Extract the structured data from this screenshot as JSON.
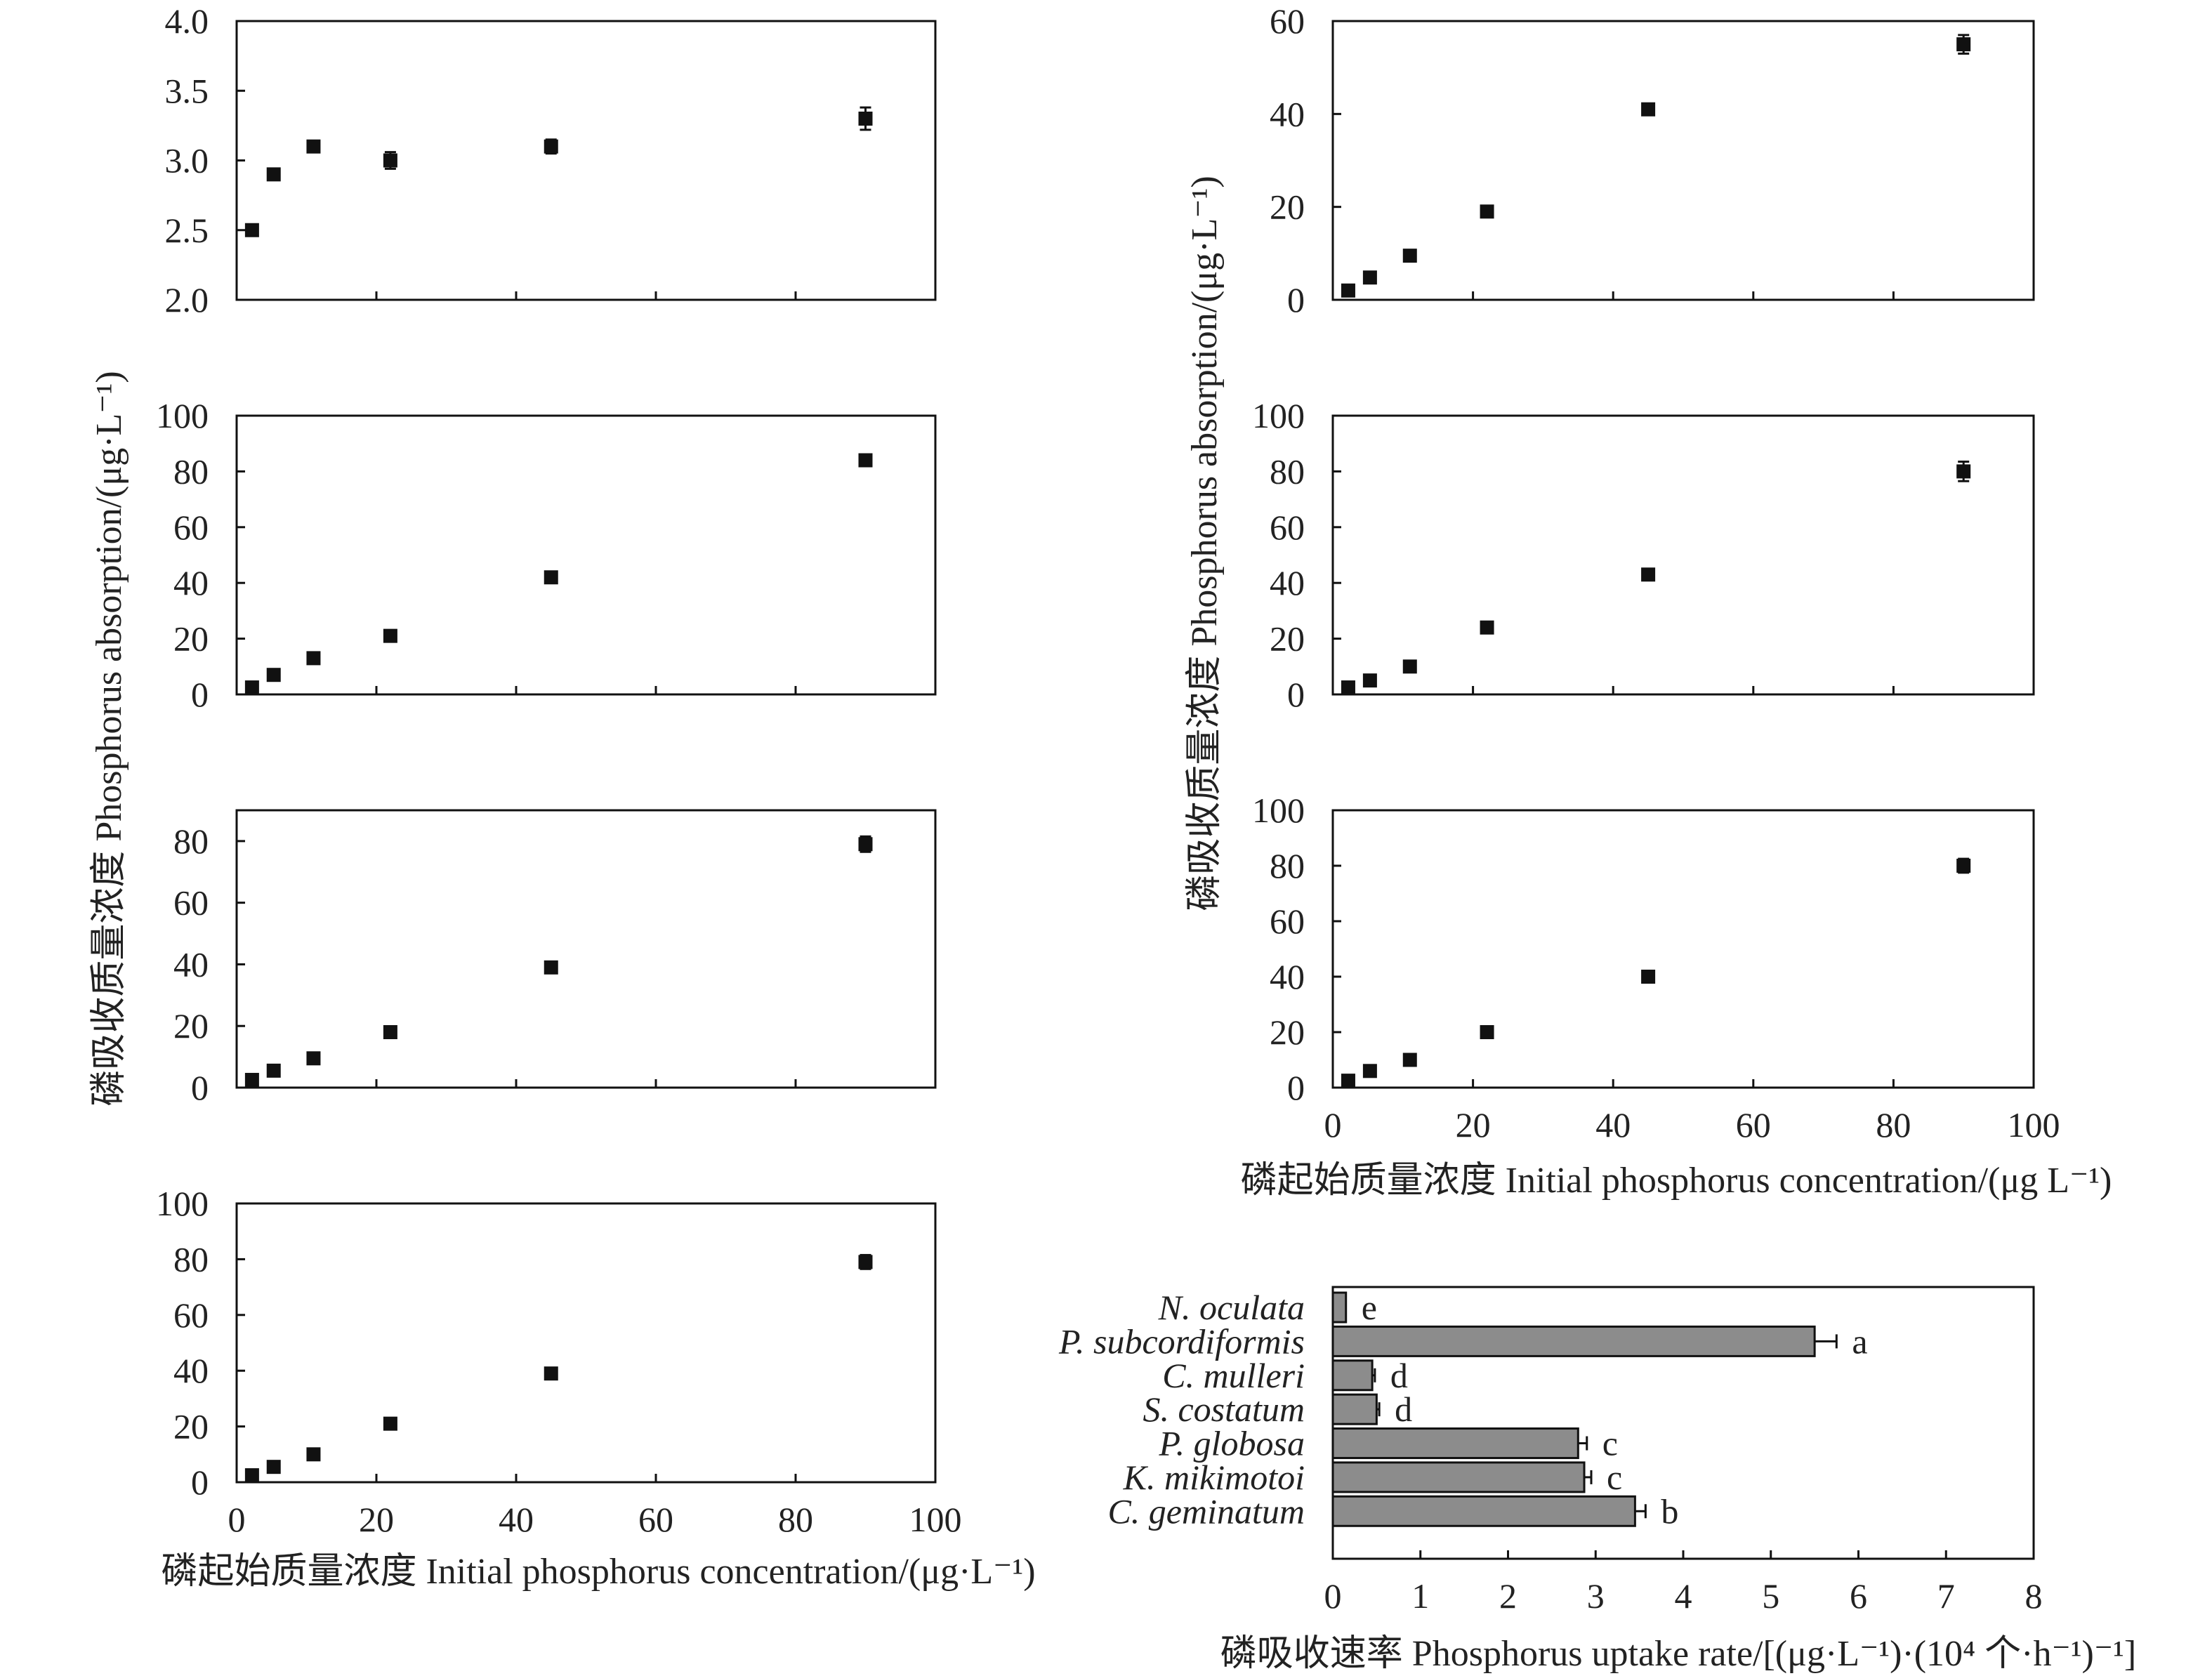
{
  "figure": {
    "ylabel_left": "磷吸收质量浓度  Phosphorus absorption/(μg·L⁻¹)",
    "ylabel_right": "磷吸收质量浓度  Phosphorus absorption/(μg·L⁻¹)",
    "xlabel_left": "磷起始质量浓度  Initial phosphorus concentration/(μg·L⁻¹)",
    "xlabel_right": "磷起始质量浓度  Initial phosphorus concentration/(μg L⁻¹)",
    "xlabel_bar": "磷吸收速率  Phosphorus uptake rate/[(μg·L⁻¹)·(10⁴ 个·h⁻¹)⁻¹]"
  },
  "chart_data": [
    {
      "type": "scatter",
      "panel": "left-1",
      "x": [
        2.2,
        5.3,
        11,
        22,
        45,
        90
      ],
      "y": [
        2.5,
        2.9,
        3.1,
        3.0,
        3.1,
        3.3
      ],
      "err": [
        0.04,
        0.03,
        0.03,
        0.06,
        0.05,
        0.08
      ],
      "xlim": [
        0,
        100
      ],
      "ylim": [
        2.0,
        4.0
      ],
      "xticks": [
        0,
        20,
        40,
        60,
        80,
        100
      ],
      "yticks": [
        2.0,
        2.5,
        3.0,
        3.5,
        4.0
      ],
      "yticklabels": [
        "2.0",
        "2.5",
        "3.0",
        "3.5",
        "4.0"
      ],
      "show_xticklabels": false
    },
    {
      "type": "scatter",
      "panel": "left-2",
      "x": [
        2.2,
        5.3,
        11,
        22,
        45,
        90
      ],
      "y": [
        2.5,
        7,
        13,
        21,
        42,
        84
      ],
      "err": [
        0.5,
        0.8,
        1,
        1.2,
        1.5,
        2
      ],
      "xlim": [
        0,
        100
      ],
      "ylim": [
        0,
        100
      ],
      "xticks": [
        0,
        20,
        40,
        60,
        80,
        100
      ],
      "yticks": [
        0,
        20,
        40,
        60,
        80,
        100
      ],
      "yticklabels": [
        "0",
        "20",
        "40",
        "60",
        "80",
        "100"
      ],
      "show_xticklabels": false
    },
    {
      "type": "scatter",
      "panel": "left-3",
      "x": [
        2.2,
        5.3,
        11,
        22,
        45,
        90
      ],
      "y": [
        2.5,
        5.5,
        9.5,
        18,
        39,
        79
      ],
      "err": [
        0.5,
        0.5,
        0.8,
        1,
        1.5,
        2.5
      ],
      "xlim": [
        0,
        100
      ],
      "ylim": [
        0,
        90
      ],
      "xticks": [
        0,
        20,
        40,
        60,
        80,
        100
      ],
      "yticks": [
        0,
        20,
        40,
        60,
        80
      ],
      "yticklabels": [
        "0",
        "20",
        "40",
        "60",
        "80"
      ],
      "show_xticklabels": false
    },
    {
      "type": "scatter",
      "panel": "left-4",
      "x": [
        2.2,
        5.3,
        11,
        22,
        45,
        90
      ],
      "y": [
        2.5,
        5.5,
        10,
        21,
        39,
        79
      ],
      "err": [
        0.5,
        1,
        1,
        1.5,
        2,
        2.5
      ],
      "xlim": [
        0,
        100
      ],
      "ylim": [
        0,
        100
      ],
      "xticks": [
        0,
        20,
        40,
        60,
        80,
        100
      ],
      "xticklabels": [
        "0",
        "20",
        "40",
        "60",
        "80",
        "100"
      ],
      "yticks": [
        0,
        20,
        40,
        60,
        80,
        100
      ],
      "yticklabels": [
        "0",
        "20",
        "40",
        "60",
        "80",
        "100"
      ],
      "show_xticklabels": true
    },
    {
      "type": "scatter",
      "panel": "right-1",
      "x": [
        2.2,
        5.3,
        11,
        22,
        45,
        90
      ],
      "y": [
        2,
        4.8,
        9.5,
        19,
        41,
        55
      ],
      "err": [
        0.5,
        0.5,
        0.8,
        1,
        1.2,
        2
      ],
      "xlim": [
        0,
        100
      ],
      "ylim": [
        0,
        60
      ],
      "xticks": [
        0,
        20,
        40,
        60,
        80,
        100
      ],
      "yticks": [
        0,
        20,
        40,
        60
      ],
      "yticklabels": [
        "0",
        "20",
        "40",
        "60"
      ],
      "show_xticklabels": false
    },
    {
      "type": "scatter",
      "panel": "right-2",
      "x": [
        2.2,
        5.3,
        11,
        22,
        45,
        90
      ],
      "y": [
        2.5,
        5,
        10,
        24,
        43,
        80
      ],
      "err": [
        0.5,
        0.8,
        1,
        1.2,
        1.5,
        3.5
      ],
      "xlim": [
        0,
        100
      ],
      "ylim": [
        0,
        100
      ],
      "xticks": [
        0,
        20,
        40,
        60,
        80,
        100
      ],
      "yticks": [
        0,
        20,
        40,
        60,
        80,
        100
      ],
      "yticklabels": [
        "0",
        "20",
        "40",
        "60",
        "80",
        "100"
      ],
      "show_xticklabels": false
    },
    {
      "type": "scatter",
      "panel": "right-3",
      "x": [
        2.2,
        5.3,
        11,
        22,
        45,
        90
      ],
      "y": [
        2.5,
        6,
        10,
        20,
        40,
        80
      ],
      "err": [
        0.5,
        0.8,
        1,
        1.2,
        1.5,
        2.5
      ],
      "xlim": [
        0,
        100
      ],
      "ylim": [
        0,
        100
      ],
      "xticks": [
        0,
        20,
        40,
        60,
        80,
        100
      ],
      "xticklabels": [
        "0",
        "20",
        "40",
        "60",
        "80",
        "100"
      ],
      "yticks": [
        0,
        20,
        40,
        60,
        80,
        100
      ],
      "yticklabels": [
        "0",
        "20",
        "40",
        "60",
        "80",
        "100"
      ],
      "show_xticklabels": true
    },
    {
      "type": "bar",
      "orientation": "horizontal",
      "panel": "bar",
      "categories": [
        "N. oculata",
        "P. subcordiformis",
        "C. mulleri",
        "S. costatum",
        "P. globosa",
        "K. mikimotoi",
        "C. geminatum"
      ],
      "values": [
        0.15,
        5.5,
        0.45,
        0.5,
        2.8,
        2.87,
        3.45
      ],
      "err": [
        0,
        0.25,
        0.03,
        0.03,
        0.1,
        0.08,
        0.12
      ],
      "letters": [
        "e",
        "a",
        "d",
        "d",
        "c",
        "c",
        "b"
      ],
      "xlim": [
        0,
        8
      ],
      "xticks": [
        0,
        1,
        2,
        3,
        4,
        5,
        6,
        7,
        8
      ],
      "xticklabels": [
        "0",
        "1",
        "2",
        "3",
        "4",
        "5",
        "6",
        "7",
        "8"
      ]
    }
  ]
}
